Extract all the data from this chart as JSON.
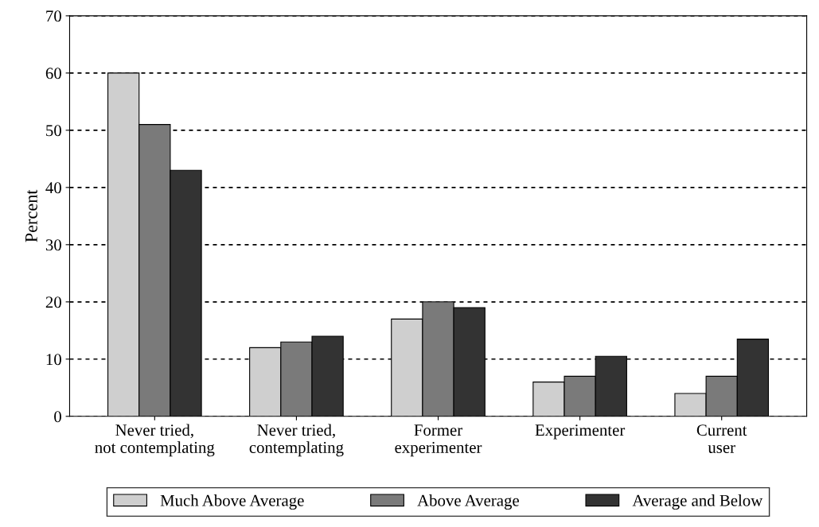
{
  "chart_data": {
    "type": "bar",
    "ylabel": "Percent",
    "categories": [
      "Never tried,\nnot contemplating",
      "Never tried,\ncontemplating",
      "Former\nexperimenter",
      "Experimenter",
      "Current\nuser"
    ],
    "series": [
      {
        "name": "Much Above Average",
        "color": "#cfcfcf",
        "values": [
          60,
          12,
          17,
          6,
          4
        ]
      },
      {
        "name": "Above Average",
        "color": "#7a7a7a",
        "values": [
          51,
          13,
          20,
          7,
          7
        ]
      },
      {
        "name": "Average and Below",
        "color": "#333333",
        "values": [
          43,
          14,
          19,
          10.5,
          13.5
        ]
      }
    ],
    "ylim": [
      0,
      70
    ],
    "yticks": [
      0,
      10,
      20,
      30,
      40,
      50,
      60,
      70
    ],
    "grid": "y",
    "line_style": "dashed",
    "legend": "bottom"
  }
}
